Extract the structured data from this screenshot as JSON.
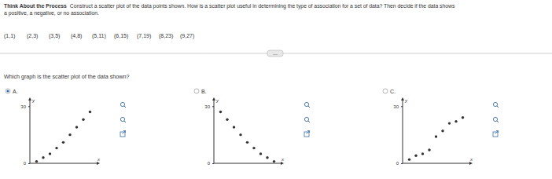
{
  "prompt": {
    "label": "Think About the Process",
    "line1": "Construct a scatter plot of the data points shown. How is a scatter plot useful in determining the type of association for a set of data? Then decide if the data shows",
    "line2": "a positive, a negative, or no association."
  },
  "points": [
    "(1,1)",
    "(2,3)",
    "(3,5)",
    "(4,8)",
    "(5,11)",
    "(6,15)",
    "(7,19)",
    "(8,23)",
    "(9,27)"
  ],
  "more_button": "...",
  "question": "Which graph is the scatter plot of the data shown?",
  "options": [
    {
      "label": "A.",
      "selected": true
    },
    {
      "label": "B.",
      "selected": false
    },
    {
      "label": "C.",
      "selected": false
    }
  ],
  "chart_data": [
    {
      "type": "scatter",
      "x": [
        1,
        2,
        3,
        4,
        5,
        6,
        7,
        8,
        9
      ],
      "values": [
        1,
        3,
        5,
        8,
        11,
        15,
        19,
        23,
        27
      ],
      "xlim": [
        0,
        10
      ],
      "ylim": [
        0,
        33
      ],
      "xticks": [],
      "yticks": [
        0,
        30
      ],
      "x_label": "x",
      "y_label": "y",
      "color": "#333333"
    },
    {
      "type": "scatter",
      "x": [
        1,
        2,
        3,
        4,
        5,
        6,
        7,
        8,
        9
      ],
      "values": [
        27,
        23,
        19,
        15,
        11,
        8,
        5,
        3,
        1
      ],
      "xlim": [
        0,
        10
      ],
      "ylim": [
        0,
        33
      ],
      "xticks": [],
      "yticks": [
        0,
        30
      ],
      "x_label": "x",
      "y_label": "y",
      "color": "#333333"
    },
    {
      "type": "scatter",
      "x": [
        1,
        2,
        3,
        4,
        5,
        6,
        7,
        8,
        9
      ],
      "values": [
        2,
        4,
        5,
        7,
        14,
        17,
        21,
        22,
        24
      ],
      "xlim": [
        0,
        10
      ],
      "ylim": [
        0,
        33
      ],
      "xticks": [],
      "yticks": [
        0,
        30
      ],
      "x_label": "x",
      "y_label": "y",
      "color": "#333333"
    }
  ]
}
